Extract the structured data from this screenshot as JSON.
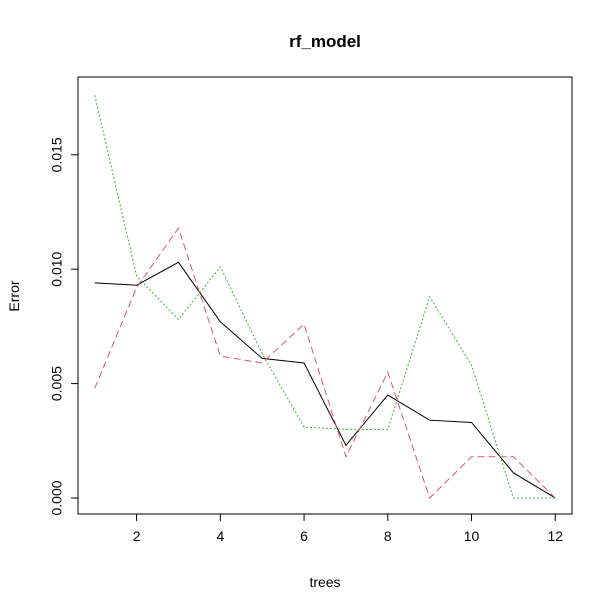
{
  "chart_data": {
    "type": "line",
    "title": "rf_model",
    "xlabel": "trees",
    "ylabel": "Error",
    "xlim": [
      0.6,
      12.4
    ],
    "ylim": [
      -0.0007,
      0.0184
    ],
    "xticks": [
      2,
      4,
      6,
      8,
      10,
      12
    ],
    "yticks": [
      0.0,
      0.005,
      0.01,
      0.015
    ],
    "ytick_labels": [
      "0.000",
      "0.005",
      "0.010",
      "0.015"
    ],
    "grid": false,
    "x": [
      1,
      2,
      3,
      4,
      5,
      6,
      7,
      8,
      9,
      10,
      11,
      12
    ],
    "series": [
      {
        "color": "#000000",
        "dash": "solid",
        "values": [
          0.0094,
          0.0093,
          0.0103,
          0.0077,
          0.0061,
          0.0059,
          0.0023,
          0.0045,
          0.0034,
          0.0033,
          0.0011,
          0.0
        ]
      },
      {
        "color": "#df536b",
        "dash": "dashed",
        "values": [
          0.0048,
          0.0092,
          0.0118,
          0.0062,
          0.0059,
          0.0076,
          0.0018,
          0.0055,
          0.0,
          0.0018,
          0.0018,
          0.0
        ]
      },
      {
        "color": "#3eb33e",
        "dash": "dotted",
        "values": [
          0.0176,
          0.0097,
          0.0078,
          0.0101,
          0.0063,
          0.0031,
          0.003,
          0.003,
          0.0088,
          0.0058,
          0.0,
          0.0
        ]
      }
    ]
  }
}
